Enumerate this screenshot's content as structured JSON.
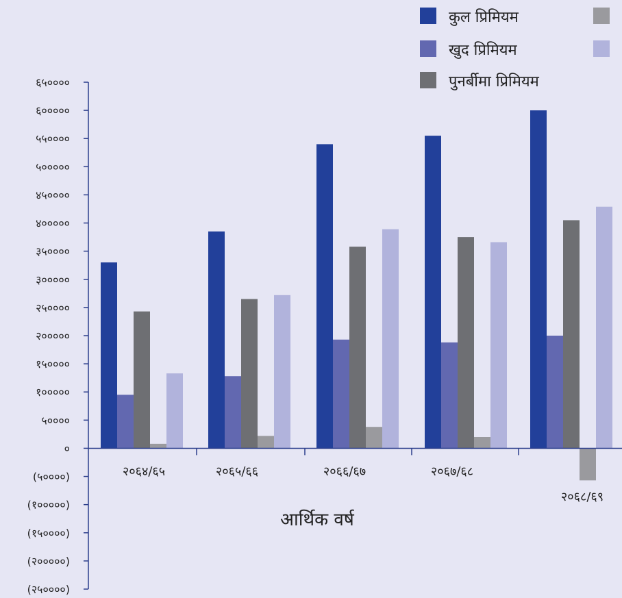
{
  "chart_data": {
    "type": "bar",
    "categories": [
      "२०६४/६५",
      "२०६५/६६",
      "२०६६/६७",
      "२०६७/६८",
      "२०६८/६९"
    ],
    "series": [
      {
        "name": "कुल प्रिमियम",
        "color": "#22409a",
        "values": [
          330000,
          385000,
          540000,
          555000,
          600000
        ]
      },
      {
        "name": "खुद प्रिमियम",
        "color": "#6268b0",
        "values": [
          95000,
          128000,
          193000,
          188000,
          200000
        ]
      },
      {
        "name": "पुनर्बीमा प्रिमियम",
        "color": "#6e6f73",
        "values": [
          243000,
          265000,
          358000,
          375000,
          405000
        ]
      },
      {
        "name": "",
        "color": "#9a9a9e",
        "values": [
          8000,
          22000,
          38000,
          20000,
          -57000
        ]
      },
      {
        "name": "",
        "color": "#b1b3dc",
        "values": [
          133000,
          272000,
          389000,
          366000,
          429000
        ]
      }
    ],
    "y_ticks": [
      "६५००००",
      "६०००००",
      "५५००००",
      "५०००००",
      "४५००००",
      "४०००००",
      "३५००००",
      "३०००००",
      "२५००००",
      "२०००००",
      "१५००००",
      "१०००००",
      "५००००",
      "०",
      "(५००००)",
      "(१०००००)",
      "(१५००००)",
      "(२०००००)",
      "(२५००००)"
    ],
    "ylim": [
      -250000,
      650000
    ],
    "xlabel": "आर्थिक वर्ष",
    "ylabel": "",
    "legend_position": "top-right",
    "grid": false
  }
}
